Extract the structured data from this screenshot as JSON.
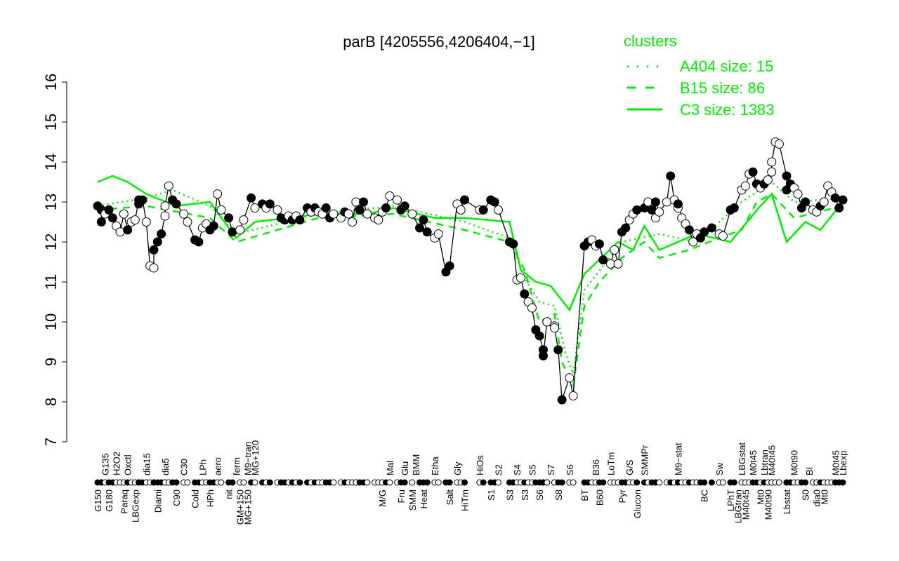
{
  "chart_data": {
    "type": "line",
    "title": "parB [4205556,4206404,−1]",
    "xlabel": "",
    "ylabel": "",
    "ylim": [
      7,
      16
    ],
    "yticks": [
      7,
      8,
      9,
      10,
      11,
      12,
      13,
      14,
      15,
      16
    ],
    "xlim": [
      0,
      199
    ],
    "grid": false,
    "legend": {
      "title": "clusters",
      "placement": "top-right",
      "color": "#00ee00",
      "entries": [
        {
          "label": "A404 size: 15",
          "style": "dotted"
        },
        {
          "label": "B15 size: 86",
          "style": "dashed"
        },
        {
          "label": "C3 size: 1383",
          "style": "solid"
        }
      ]
    },
    "points": [
      [
        0,
        12.9,
        1
      ],
      [
        1,
        12.8,
        1
      ],
      [
        1,
        12.5,
        1
      ],
      [
        2,
        12.7,
        0
      ],
      [
        3,
        12.8,
        1
      ],
      [
        4,
        12.6,
        1
      ],
      [
        5,
        12.4,
        0
      ],
      [
        6,
        12.25,
        0
      ],
      [
        7,
        12.7,
        0
      ],
      [
        8,
        12.3,
        1
      ],
      [
        9,
        12.5,
        0
      ],
      [
        10,
        12.55,
        0
      ],
      [
        11,
        13.05,
        1
      ],
      [
        11,
        12.95,
        1
      ],
      [
        12,
        13.05,
        1
      ],
      [
        13,
        12.5,
        0
      ],
      [
        14,
        11.4,
        0
      ],
      [
        15,
        11.35,
        0
      ],
      [
        15,
        11.8,
        1
      ],
      [
        16,
        12.0,
        1
      ],
      [
        17,
        12.2,
        1
      ],
      [
        18,
        12.65,
        0
      ],
      [
        18,
        12.9,
        0
      ],
      [
        19,
        13.4,
        0
      ],
      [
        20,
        13.05,
        1
      ],
      [
        21,
        12.95,
        1
      ],
      [
        23,
        12.7,
        0
      ],
      [
        24,
        12.5,
        0
      ],
      [
        26,
        12.05,
        1
      ],
      [
        27,
        12.0,
        1
      ],
      [
        28,
        12.35,
        0
      ],
      [
        29,
        12.45,
        0
      ],
      [
        30,
        12.3,
        1
      ],
      [
        31,
        12.4,
        1
      ],
      [
        32,
        13.2,
        0
      ],
      [
        33,
        12.8,
        0
      ],
      [
        35,
        12.6,
        1
      ],
      [
        36,
        12.25,
        1
      ],
      [
        38,
        12.3,
        0
      ],
      [
        39,
        12.55,
        0
      ],
      [
        41,
        13.1,
        1
      ],
      [
        42,
        12.85,
        0
      ],
      [
        44,
        12.95,
        1
      ],
      [
        45,
        12.85,
        0
      ],
      [
        46,
        12.95,
        1
      ],
      [
        48,
        12.8,
        0
      ],
      [
        49,
        12.6,
        1
      ],
      [
        50,
        12.55,
        1
      ],
      [
        51,
        12.65,
        0
      ],
      [
        52,
        12.55,
        1
      ],
      [
        53,
        12.65,
        0
      ],
      [
        54,
        12.55,
        1
      ],
      [
        56,
        12.85,
        1
      ],
      [
        57,
        12.75,
        0
      ],
      [
        58,
        12.85,
        1
      ],
      [
        59,
        12.75,
        0
      ],
      [
        60,
        12.7,
        0
      ],
      [
        61,
        12.85,
        1
      ],
      [
        62,
        12.6,
        1
      ],
      [
        63,
        12.7,
        0
      ],
      [
        65,
        12.6,
        0
      ],
      [
        66,
        12.75,
        1
      ],
      [
        67,
        12.7,
        0
      ],
      [
        68,
        12.5,
        0
      ],
      [
        69,
        13.0,
        0
      ],
      [
        70,
        12.8,
        1
      ],
      [
        71,
        13.0,
        1
      ],
      [
        72,
        12.7,
        0
      ],
      [
        74,
        12.6,
        0
      ],
      [
        75,
        12.55,
        0
      ],
      [
        76,
        12.75,
        0
      ],
      [
        77,
        12.85,
        1
      ],
      [
        78,
        13.15,
        0
      ],
      [
        80,
        13.05,
        0
      ],
      [
        81,
        12.8,
        1
      ],
      [
        82,
        12.9,
        1
      ],
      [
        84,
        12.7,
        0
      ],
      [
        86,
        12.35,
        1
      ],
      [
        87,
        12.55,
        1
      ],
      [
        88,
        12.25,
        1
      ],
      [
        90,
        12.1,
        0
      ],
      [
        91,
        12.2,
        0
      ],
      [
        93,
        11.25,
        1
      ],
      [
        94,
        11.4,
        1
      ],
      [
        96,
        12.95,
        0
      ],
      [
        97,
        12.8,
        0
      ],
      [
        98,
        13.05,
        1
      ],
      [
        102,
        12.8,
        0
      ],
      [
        103,
        12.8,
        1
      ],
      [
        105,
        13.05,
        1
      ],
      [
        106,
        13.0,
        1
      ],
      [
        107,
        12.8,
        0
      ],
      [
        110,
        12.0,
        1
      ],
      [
        111,
        11.95,
        1
      ],
      [
        112,
        11.05,
        0
      ],
      [
        113,
        11.1,
        0
      ],
      [
        114,
        10.7,
        1
      ],
      [
        115,
        10.5,
        0
      ],
      [
        116,
        10.35,
        0
      ],
      [
        117,
        9.8,
        1
      ],
      [
        118,
        9.65,
        1
      ],
      [
        119,
        9.3,
        1
      ],
      [
        119,
        9.15,
        1
      ],
      [
        120,
        10.0,
        1
      ],
      [
        120,
        10.0,
        0
      ],
      [
        122,
        9.9,
        0
      ],
      [
        122,
        9.85,
        0
      ],
      [
        123,
        9.3,
        1
      ],
      [
        124,
        8.05,
        1
      ],
      [
        126,
        8.6,
        0
      ],
      [
        127,
        8.15,
        0
      ],
      [
        130,
        11.9,
        1
      ],
      [
        131,
        12.0,
        1
      ],
      [
        132,
        12.05,
        0
      ],
      [
        133,
        11.9,
        0
      ],
      [
        134,
        11.95,
        1
      ],
      [
        135,
        11.55,
        1
      ],
      [
        137,
        11.45,
        0
      ],
      [
        138,
        11.8,
        0
      ],
      [
        139,
        11.45,
        0
      ],
      [
        140,
        12.25,
        1
      ],
      [
        141,
        12.35,
        1
      ],
      [
        142,
        12.55,
        0
      ],
      [
        143,
        12.7,
        0
      ],
      [
        144,
        12.8,
        1
      ],
      [
        146,
        12.85,
        1
      ],
      [
        147,
        13.0,
        0
      ],
      [
        148,
        12.8,
        1
      ],
      [
        149,
        12.6,
        0
      ],
      [
        149,
        13.0,
        1
      ],
      [
        150,
        12.75,
        0
      ],
      [
        152,
        13.0,
        0
      ],
      [
        153,
        13.65,
        1
      ],
      [
        154,
        13.05,
        0
      ],
      [
        155,
        12.85,
        0
      ],
      [
        155,
        12.95,
        1
      ],
      [
        156,
        12.6,
        0
      ],
      [
        157,
        12.45,
        0
      ],
      [
        158,
        12.3,
        1
      ],
      [
        159,
        12.0,
        0
      ],
      [
        160,
        12.2,
        0
      ],
      [
        161,
        12.1,
        1
      ],
      [
        162,
        12.25,
        1
      ],
      [
        164,
        12.35,
        1
      ],
      [
        166,
        12.2,
        0
      ],
      [
        167,
        12.15,
        0
      ],
      [
        169,
        12.8,
        1
      ],
      [
        170,
        12.85,
        1
      ],
      [
        172,
        13.3,
        0
      ],
      [
        173,
        13.4,
        0
      ],
      [
        174,
        13.7,
        0
      ],
      [
        175,
        13.75,
        1
      ],
      [
        176,
        13.45,
        1
      ],
      [
        177,
        13.35,
        0
      ],
      [
        178,
        13.45,
        1
      ],
      [
        179,
        13.55,
        0
      ],
      [
        180,
        13.75,
        0
      ],
      [
        180,
        14.0,
        0
      ],
      [
        181,
        14.5,
        0
      ],
      [
        182,
        14.45,
        0
      ],
      [
        184,
        13.65,
        1
      ],
      [
        184,
        13.3,
        1
      ],
      [
        185,
        13.45,
        1
      ],
      [
        186,
        13.35,
        0
      ],
      [
        187,
        13.2,
        0
      ],
      [
        188,
        12.85,
        1
      ],
      [
        189,
        13.0,
        1
      ],
      [
        191,
        12.8,
        0
      ],
      [
        192,
        12.75,
        0
      ],
      [
        193,
        12.9,
        1
      ],
      [
        194,
        13.0,
        0
      ],
      [
        195,
        13.4,
        0
      ],
      [
        196,
        13.25,
        0
      ],
      [
        197,
        13.1,
        1
      ],
      [
        198,
        12.85,
        1
      ],
      [
        199,
        13.05,
        1
      ]
    ],
    "cluster_lines": {
      "C3": [
        [
          0,
          13.5
        ],
        [
          4,
          13.65
        ],
        [
          8,
          13.5
        ],
        [
          13,
          13.2
        ],
        [
          21,
          12.9
        ],
        [
          30,
          13.0
        ],
        [
          37,
          12.1
        ],
        [
          42,
          12.5
        ],
        [
          59,
          12.7
        ],
        [
          72,
          12.7
        ],
        [
          79,
          12.85
        ],
        [
          90,
          12.6
        ],
        [
          98,
          12.6
        ],
        [
          110,
          12.5
        ],
        [
          113,
          11.3
        ],
        [
          117,
          11.0
        ],
        [
          121,
          10.9
        ],
        [
          126,
          10.3
        ],
        [
          130,
          11.2
        ],
        [
          139,
          12.0
        ],
        [
          143,
          11.8
        ],
        [
          146,
          12.4
        ],
        [
          150,
          11.8
        ],
        [
          160,
          12.2
        ],
        [
          169,
          12.0
        ],
        [
          177,
          12.9
        ],
        [
          180,
          13.2
        ],
        [
          184,
          12.0
        ],
        [
          189,
          12.5
        ],
        [
          193,
          12.3
        ],
        [
          199,
          13.0
        ]
      ],
      "B15": [
        [
          0,
          12.8
        ],
        [
          13,
          12.9
        ],
        [
          30,
          12.6
        ],
        [
          37,
          12.0
        ],
        [
          59,
          12.6
        ],
        [
          79,
          12.7
        ],
        [
          98,
          12.3
        ],
        [
          110,
          12.0
        ],
        [
          114,
          11.3
        ],
        [
          118,
          10.0
        ],
        [
          122,
          10.2
        ],
        [
          124,
          9.0
        ],
        [
          127,
          8.4
        ],
        [
          130,
          10.4
        ],
        [
          134,
          11.0
        ],
        [
          140,
          11.6
        ],
        [
          146,
          12.0
        ],
        [
          150,
          11.6
        ],
        [
          158,
          11.8
        ],
        [
          166,
          12.1
        ],
        [
          172,
          12.3
        ],
        [
          176,
          13.0
        ],
        [
          180,
          13.2
        ],
        [
          186,
          12.6
        ],
        [
          199,
          12.9
        ]
      ],
      "A404": [
        [
          0,
          12.9
        ],
        [
          13,
          13.1
        ],
        [
          20,
          13.3
        ],
        [
          30,
          12.9
        ],
        [
          37,
          12.2
        ],
        [
          59,
          12.7
        ],
        [
          79,
          12.9
        ],
        [
          98,
          12.5
        ],
        [
          110,
          12.1
        ],
        [
          114,
          11.1
        ],
        [
          118,
          10.5
        ],
        [
          122,
          10.4
        ],
        [
          125,
          9.2
        ],
        [
          127,
          8.7
        ],
        [
          130,
          10.8
        ],
        [
          140,
          12.0
        ],
        [
          150,
          12.2
        ],
        [
          160,
          12.0
        ],
        [
          172,
          13.0
        ],
        [
          180,
          13.5
        ],
        [
          186,
          13.0
        ],
        [
          199,
          13.1
        ]
      ]
    },
    "x_labels_bottom": [
      [
        0,
        "G150"
      ],
      [
        3,
        "G180"
      ],
      [
        7,
        "Paraq"
      ],
      [
        10,
        "LBGexp"
      ],
      [
        16,
        "Diami"
      ],
      [
        21,
        "C90"
      ],
      [
        26,
        "Cold"
      ],
      [
        30,
        "HPh"
      ],
      [
        35,
        "nit"
      ],
      [
        38,
        "GM+150"
      ],
      [
        40,
        "MG+150"
      ],
      [
        76,
        "M/G"
      ],
      [
        81,
        "Fru"
      ],
      [
        84,
        "SMM"
      ],
      [
        87,
        "Heat"
      ],
      [
        94,
        "Salt"
      ],
      [
        98,
        "HiTm"
      ],
      [
        105,
        "S1"
      ],
      [
        110,
        "S3"
      ],
      [
        114,
        "S3"
      ],
      [
        118,
        "S6"
      ],
      [
        123,
        "S8"
      ],
      [
        130,
        "BT"
      ],
      [
        134,
        "B60"
      ],
      [
        140,
        "Pyr"
      ],
      [
        144,
        "Glucon"
      ],
      [
        162,
        "BC"
      ],
      [
        169,
        "LPhT"
      ],
      [
        171,
        "LBGtran"
      ],
      [
        173,
        "M40t45"
      ],
      [
        177,
        "Mt0"
      ],
      [
        179,
        "M40t90"
      ],
      [
        184,
        "Lbstat"
      ],
      [
        189,
        "S0"
      ],
      [
        192,
        "dia0"
      ],
      [
        194,
        "Mt0"
      ]
    ],
    "x_labels_top": [
      [
        2,
        "G135"
      ],
      [
        5,
        "H2O2"
      ],
      [
        8,
        "Oxctl"
      ],
      [
        13,
        "dia15"
      ],
      [
        18,
        "dia5"
      ],
      [
        23,
        "C30"
      ],
      [
        28,
        "LPh"
      ],
      [
        32,
        "aero"
      ],
      [
        37,
        "ferm"
      ],
      [
        40,
        "M9−tran"
      ],
      [
        42,
        "MG+120"
      ],
      [
        78,
        "Mal"
      ],
      [
        82,
        "Glu"
      ],
      [
        85,
        "BMM"
      ],
      [
        90,
        "Etha"
      ],
      [
        96,
        "Gly"
      ],
      [
        102,
        "HiOs"
      ],
      [
        107,
        "S2"
      ],
      [
        112,
        "S4"
      ],
      [
        116,
        "S5"
      ],
      [
        121,
        "S7"
      ],
      [
        126,
        "S6"
      ],
      [
        133,
        "B36"
      ],
      [
        137,
        "LoTm"
      ],
      [
        142,
        "G/S"
      ],
      [
        146,
        "SMMPr"
      ],
      [
        155,
        "M9−stat"
      ],
      [
        166,
        "Sw"
      ],
      [
        172,
        "LBGstat"
      ],
      [
        175,
        "M0t45"
      ],
      [
        178,
        "Lbtran"
      ],
      [
        180,
        "M40t45"
      ],
      [
        186,
        "M0t90"
      ],
      [
        190,
        "BI"
      ],
      [
        197,
        "M0t45"
      ],
      [
        199,
        "Lbexp"
      ]
    ]
  }
}
